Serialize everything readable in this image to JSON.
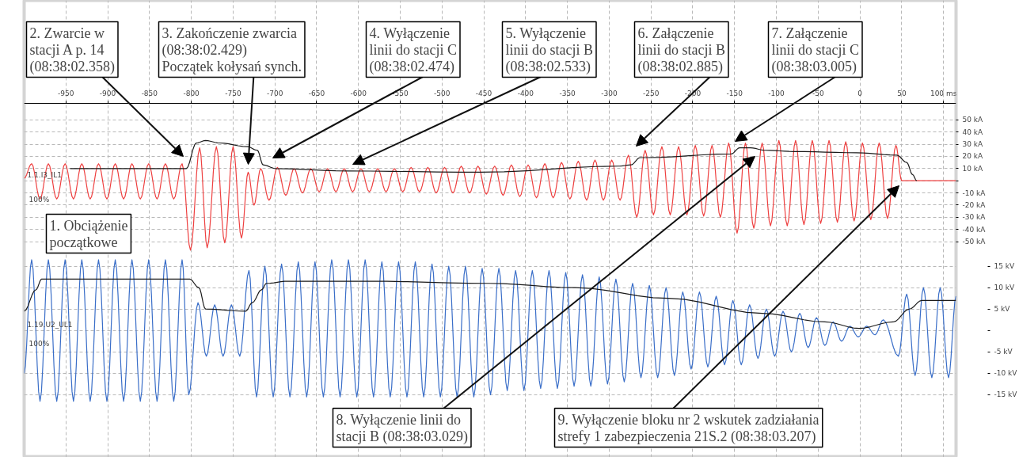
{
  "chart_data": {
    "type": "line",
    "xlim": [
      -1000,
      115
    ],
    "xticks": [
      -950,
      -900,
      -850,
      -800,
      -750,
      -700,
      -650,
      -600,
      -550,
      -500,
      -450,
      -400,
      -350,
      -300,
      -250,
      -200,
      -150,
      -100,
      -50,
      0,
      50,
      {
        "value": 100,
        "label": "100 ms"
      }
    ],
    "ylim": [
      -227,
      148
    ],
    "yticks": [
      {
        "value": 50,
        "label": "50 kA"
      },
      {
        "value": 40,
        "label": "40 kA"
      },
      {
        "value": 30,
        "label": "30 kA"
      },
      {
        "value": 20,
        "label": "20 kA"
      },
      {
        "value": 10,
        "label": "10 kA"
      },
      {
        "value": 0,
        "label": null
      },
      {
        "value": -10,
        "label": "-10 kA"
      },
      {
        "value": -20,
        "label": "-20 kA"
      },
      {
        "value": -30,
        "label": "-30 kA"
      },
      {
        "value": -40,
        "label": "-40 kA"
      },
      {
        "value": -50,
        "label": "-50 kA"
      }
    ],
    "y2lim": [
      -29.6,
      77
    ],
    "y2ticks": [
      {
        "value": 15,
        "label": "15 kV"
      },
      {
        "value": 10,
        "label": "10 kV"
      },
      {
        "value": 5,
        "label": "5 kV"
      },
      {
        "value": 0,
        "label": null
      },
      {
        "value": -5,
        "label": "-5 kV"
      },
      {
        "value": -10,
        "label": "-10 kV"
      },
      {
        "value": -15,
        "label": "-15 kV"
      }
    ],
    "grid": true,
    "series": [
      {
        "name": "1.1.I3_IL1",
        "color": "#ee4040",
        "x": [
          -1000,
          -991,
          -981,
          -971,
          -961,
          -951,
          -941,
          -931,
          -921,
          -911,
          -901,
          -891,
          -881,
          -871,
          -861,
          -851,
          -841,
          -831,
          -821,
          -811,
          -801,
          -790,
          -781,
          -770,
          -760,
          -750,
          -740,
          -732,
          -725,
          -717,
          -707,
          -697,
          -687,
          -677,
          -667,
          -657,
          -647,
          -637,
          -627,
          -617,
          -607,
          -597,
          -587,
          -577,
          -567,
          -557,
          -547,
          -537,
          -527,
          -517,
          -507,
          -497,
          -487,
          -477,
          -467,
          -457,
          -447,
          -437,
          -427,
          -417,
          -407,
          -397,
          -387,
          -377,
          -367,
          -357,
          -347,
          -337,
          -327,
          -317,
          -307,
          -297,
          -287,
          -277,
          -267,
          -257,
          -247,
          -237,
          -227,
          -217,
          -207,
          -197,
          -187,
          -177,
          -167,
          -157,
          -147,
          -137,
          -127,
          -117,
          -107,
          -97,
          -87,
          -77,
          -67,
          -57,
          -47,
          -37,
          -27,
          -17,
          -7,
          3,
          13,
          23,
          33,
          43,
          50,
          115
        ],
        "values": [
          2,
          14,
          -15,
          14,
          -15,
          14,
          -15,
          14,
          -15,
          14,
          -15,
          14,
          -15,
          14,
          -15,
          14,
          -15,
          14,
          -15,
          14,
          -57,
          27,
          -55,
          28,
          -51,
          28,
          -47,
          7,
          -20,
          10,
          -16,
          11,
          -12,
          10,
          -10,
          10,
          -9,
          10,
          -9,
          10,
          -9,
          10,
          -9,
          10,
          -9,
          10,
          -9,
          11,
          -9,
          11,
          -10,
          11,
          -10,
          12,
          -10,
          12,
          -11,
          12,
          -12,
          13,
          -13,
          13,
          -14,
          14,
          -14,
          15,
          -15,
          16,
          -16,
          17,
          -16,
          17,
          -16,
          21,
          -30,
          25,
          -28,
          28,
          -28,
          28,
          -28,
          29,
          -29,
          29,
          -30,
          31,
          -43,
          31,
          -39,
          31,
          -37,
          33,
          -37,
          33,
          -36,
          33,
          -35,
          33,
          -34,
          32,
          -33,
          31,
          -32,
          31,
          -31,
          29,
          0,
          0
        ]
      },
      {
        "color": "#1a1a1a",
        "x": [
          -945,
          -806,
          -794,
          -783,
          -766,
          -733,
          -721,
          -714,
          -699,
          -613,
          -453,
          -289,
          -274,
          -263,
          -255,
          -154,
          -144,
          -131,
          -113,
          -79,
          -4,
          44,
          56,
          63,
          68
        ],
        "values": [
          10,
          10,
          31,
          33,
          31,
          28,
          25,
          13,
          10,
          8,
          7,
          12,
          13,
          19,
          19,
          22,
          27,
          27,
          25,
          24,
          23,
          21,
          15,
          5,
          0
        ]
      },
      {
        "name": "1.19.U2_UL1",
        "color": "#3a6ec8",
        "axis": "y2",
        "x": [
          -1000,
          -991,
          -981,
          -971,
          -961,
          -951,
          -941,
          -931,
          -921,
          -911,
          -901,
          -891,
          -881,
          -871,
          -861,
          -851,
          -841,
          -831,
          -821,
          -811,
          -803,
          -792,
          -782,
          -772,
          -762,
          -752,
          -742,
          -731,
          -722,
          -712,
          -702,
          -692,
          -682,
          -672,
          -662,
          -652,
          -642,
          -632,
          -622,
          -612,
          -602,
          -592,
          -582,
          -572,
          -562,
          -552,
          -542,
          -532,
          -522,
          -512,
          -502,
          -492,
          -482,
          -472,
          -462,
          -452,
          -442,
          -432,
          -422,
          -412,
          -402,
          -392,
          -382,
          -372,
          -362,
          -352,
          -342,
          -332,
          -322,
          -312,
          -302,
          -292,
          -282,
          -272,
          -262,
          -252,
          -242,
          -232,
          -222,
          -212,
          -202,
          -192,
          -182,
          -172,
          -162,
          -152,
          -142,
          -132,
          -122,
          -112,
          -102,
          -92,
          -82,
          -72,
          -62,
          -52,
          -42,
          -32,
          -22,
          -12,
          -2,
          8,
          18,
          28,
          46,
          56,
          66,
          76,
          86,
          96,
          106,
          115
        ],
        "values": [
          -10,
          16.5,
          -16.5,
          16.5,
          -16.5,
          16.5,
          -16.5,
          16.5,
          -16.5,
          16.5,
          -16.5,
          16.5,
          -16.5,
          16.5,
          -16.5,
          16.5,
          -16.5,
          16.5,
          -16.5,
          16.5,
          -15,
          6.5,
          -6,
          6,
          -6,
          6,
          -6,
          14,
          -15.5,
          15,
          -15.5,
          15.5,
          -15.5,
          16,
          -15.5,
          16,
          -15.5,
          16.5,
          -15.5,
          16.5,
          -15.5,
          16.5,
          -15.5,
          16,
          -15.5,
          16,
          -15.5,
          16,
          -15.5,
          15.5,
          -15.5,
          15,
          -15.5,
          15,
          -15.5,
          14.5,
          -15,
          14.5,
          -14,
          14,
          -14,
          14,
          -13.5,
          14,
          -13.5,
          13.5,
          -13,
          13,
          -13,
          12.5,
          -12.5,
          12,
          -12,
          11,
          -11,
          10.5,
          -11,
          10,
          -10.5,
          9,
          -9,
          9,
          -8.5,
          8,
          -8,
          7,
          -8,
          6,
          -6.5,
          5,
          -6,
          4.5,
          -5,
          4,
          -4,
          3,
          -3.5,
          2,
          -2.5,
          1,
          -1.5,
          1,
          -1,
          2.5,
          -6,
          8.5,
          -10.5,
          10,
          -11,
          10,
          -11,
          8
        ]
      },
      {
        "color": "#1a1a1a",
        "axis": "y2",
        "x": [
          -1000,
          -986,
          -979,
          -802,
          -791,
          -783,
          -735,
          -727,
          -716,
          -710,
          -684,
          -590,
          -444,
          -341,
          -229,
          -117,
          -42,
          -1,
          40,
          59,
          74,
          115
        ],
        "values": [
          4.5,
          9.5,
          12,
          12,
          10,
          5,
          4.5,
          6.5,
          9.5,
          11,
          11.5,
          11.5,
          11,
          10,
          7.5,
          4,
          2,
          0.5,
          2,
          5,
          7,
          7
        ]
      }
    ],
    "annotations": [
      "1. Obciążenie\npoczątkowe",
      "2. Zwarcie w\nstacji A p. 14\n(08:38:02.358)",
      "3. Zakończenie zwarcia\n(08:38:02.429)\nPoczątek kołysań synch.",
      "4. Wyłączenie\nlinii do stacji C\n(08:38:02.474)",
      "5. Wyłączenie\nlinii do stacji B\n(08:38:02.533)",
      "6. Załączenie\nlinii do stacji B\n(08:38:02.885)",
      "7. Załączenie\nlinii do stacji C\n(08:38:03.005)",
      "8. Wyłączenie linii do\nstacji B (08:38:03.029)",
      "9. Wyłączenie bloku nr 2 wskutek zadziałania\nstrefy 1 zabezpieczenia 21S.2 (08:38:03.207)",
      "100%",
      "100%"
    ]
  }
}
